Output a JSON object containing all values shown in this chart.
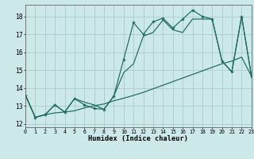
{
  "xlabel": "Humidex (Indice chaleur)",
  "ylabel": "",
  "xlim": [
    0,
    23
  ],
  "ylim": [
    11.8,
    18.65
  ],
  "bg_color": "#cce8e8",
  "grid_color": "#aacccc",
  "line_color": "#1a6b5a",
  "x_ticks": [
    0,
    1,
    2,
    3,
    4,
    5,
    6,
    7,
    8,
    9,
    10,
    11,
    12,
    13,
    14,
    15,
    16,
    17,
    18,
    19,
    20,
    21,
    22,
    23
  ],
  "y_ticks": [
    12,
    13,
    14,
    15,
    16,
    17,
    18
  ],
  "line_jagged": [
    13.6,
    12.35,
    12.5,
    13.05,
    12.65,
    13.4,
    13.05,
    12.85,
    12.8,
    13.55,
    15.6,
    17.65,
    17.0,
    17.7,
    17.9,
    17.35,
    17.85,
    18.35,
    18.0,
    17.85,
    15.5,
    14.9,
    18.0,
    14.65
  ],
  "line_mid": [
    13.6,
    12.35,
    12.5,
    13.05,
    12.65,
    13.4,
    13.2,
    13.05,
    12.8,
    13.55,
    14.85,
    15.35,
    16.9,
    17.1,
    17.8,
    17.25,
    17.1,
    17.85,
    17.85,
    17.85,
    15.5,
    14.9,
    18.0,
    14.65
  ],
  "line_diag": [
    13.6,
    12.35,
    12.5,
    12.6,
    12.65,
    12.72,
    12.88,
    13.0,
    13.1,
    13.28,
    13.42,
    13.58,
    13.75,
    13.95,
    14.15,
    14.35,
    14.55,
    14.75,
    14.95,
    15.15,
    15.35,
    15.5,
    15.72,
    14.65
  ]
}
